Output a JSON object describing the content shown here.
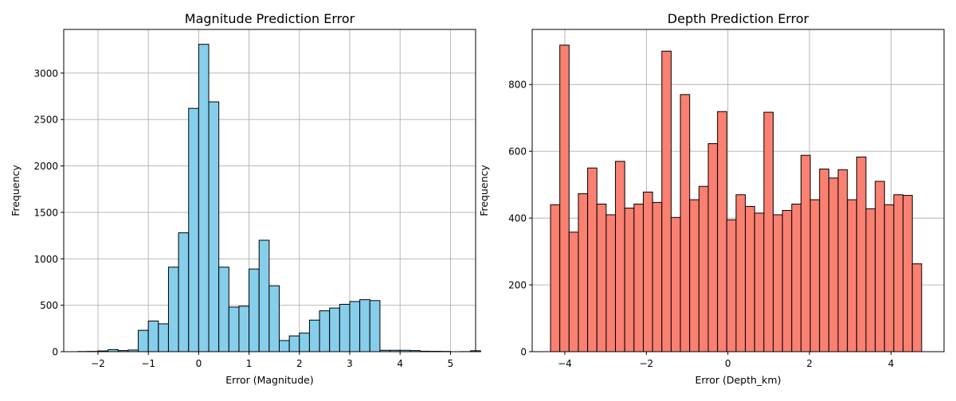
{
  "chart_data": [
    {
      "type": "bar",
      "subtype": "histogram",
      "title": "Magnitude Prediction Error",
      "xlabel": "Error (Magnitude)",
      "ylabel": "Frequency",
      "xlim": [
        -2.68,
        5.5
      ],
      "ylim": [
        0,
        3470
      ],
      "xticks": [
        -2,
        -1,
        0,
        1,
        2,
        3,
        4,
        5
      ],
      "yticks": [
        0,
        500,
        1000,
        1500,
        2000,
        2500,
        3000
      ],
      "grid": true,
      "color": "#87CEEB",
      "bin_start": -2.4,
      "bin_width": 0.2,
      "values": [
        2,
        3,
        8,
        22,
        12,
        18,
        230,
        330,
        300,
        910,
        1280,
        2620,
        3310,
        2690,
        910,
        480,
        490,
        890,
        1200,
        710,
        120,
        170,
        200,
        340,
        440,
        470,
        510,
        540,
        560,
        550,
        15,
        15,
        15,
        12,
        5,
        4,
        3,
        0,
        1,
        10
      ]
    },
    {
      "type": "bar",
      "subtype": "histogram",
      "title": "Depth Prediction Error",
      "xlabel": "Error (Depth_km)",
      "ylabel": "Frequency",
      "xlim": [
        -4.8,
        5.3
      ],
      "ylim": [
        0,
        965
      ],
      "xticks": [
        -4,
        -2,
        0,
        2,
        4
      ],
      "yticks": [
        0,
        200,
        400,
        600,
        800
      ],
      "grid": true,
      "color": "#FA8072",
      "bin_start": -4.35,
      "bin_width": 0.2275,
      "values": [
        440,
        918,
        358,
        473,
        550,
        442,
        410,
        570,
        430,
        442,
        478,
        447,
        900,
        402,
        770,
        455,
        495,
        623,
        719,
        395,
        470,
        435,
        415,
        717,
        410,
        423,
        442,
        588,
        455,
        547,
        520,
        545,
        455,
        583,
        428,
        510,
        440,
        470,
        468,
        263
      ]
    }
  ]
}
